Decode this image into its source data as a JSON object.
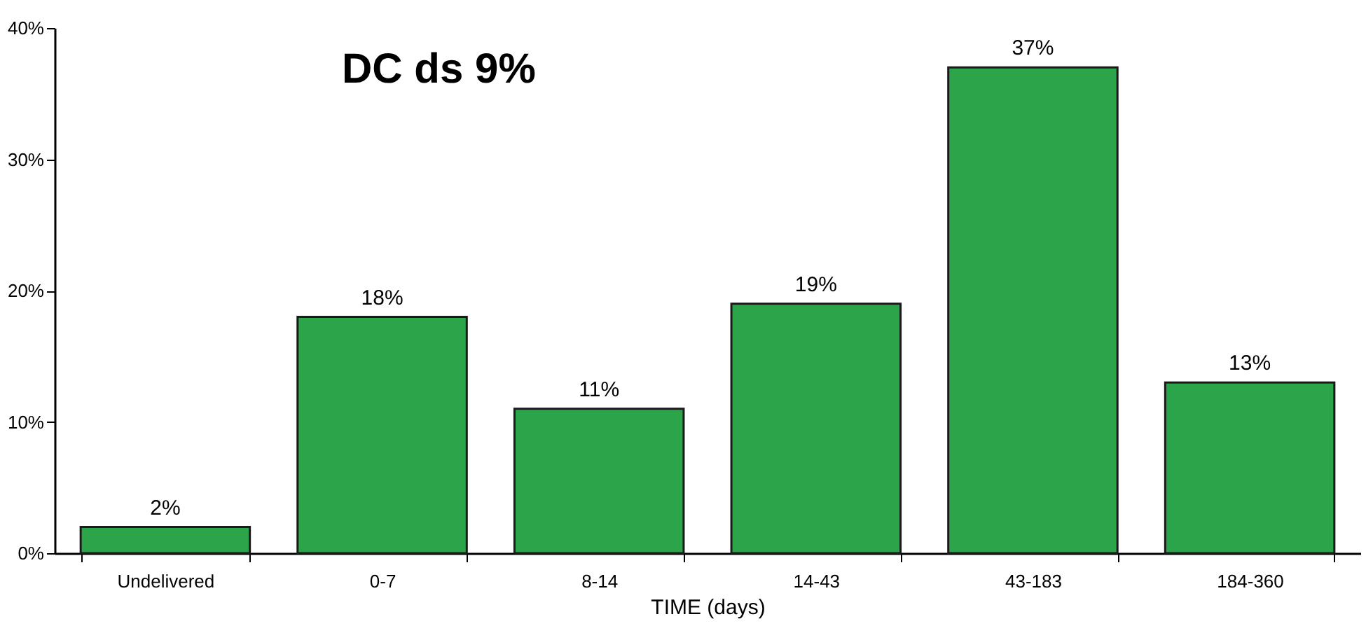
{
  "chart_data": {
    "type": "bar",
    "xlabel": "TIME (days)",
    "categories": [
      "Undelivered",
      "0-7",
      "8-14",
      "14-43",
      "43-183",
      "184-360"
    ],
    "values": [
      2,
      18,
      11,
      19,
      37,
      13
    ],
    "value_labels": [
      "2%",
      "18%",
      "11%",
      "19%",
      "37%",
      "13%"
    ],
    "color": "#2ca44a",
    "ylim": [
      0,
      40
    ],
    "yticks": [
      {
        "value": 0,
        "label": "0%"
      },
      {
        "value": 10,
        "label": "10%"
      },
      {
        "value": 20,
        "label": "20%"
      },
      {
        "value": 30,
        "label": "30%"
      },
      {
        "value": 40,
        "label": "40%"
      }
    ],
    "grid": false,
    "annotations": [
      "DC ds 9%"
    ]
  }
}
